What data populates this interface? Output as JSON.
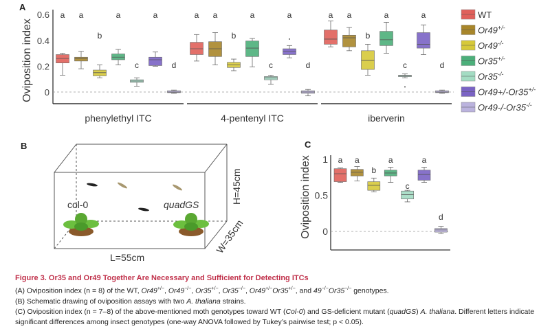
{
  "panels": {
    "a": "A",
    "b": "B",
    "c": "C"
  },
  "legend": [
    {
      "base": "WT",
      "sup": "",
      "italic": false,
      "color": "#e0605a"
    },
    {
      "base": "Or49",
      "sup": "+/-",
      "italic": true,
      "color": "#a8862a"
    },
    {
      "base": "Or49",
      "sup": "-/-",
      "italic": true,
      "color": "#d6c93a"
    },
    {
      "base": "Or35",
      "sup": "+/-",
      "italic": true,
      "color": "#4caf7a"
    },
    {
      "base": "Or35",
      "sup": "-/-",
      "italic": true,
      "color": "#a3dcc3"
    },
    {
      "base": "Or49+/-Or35",
      "sup": "+/-",
      "italic": true,
      "color": "#7a63c4"
    },
    {
      "base": "Or49-/-Or35",
      "sup": "-/-",
      "italic": true,
      "color": "#bbb3de"
    }
  ],
  "chart_data": [
    {
      "id": "A",
      "type": "boxplot",
      "ylabel": "Oviposition index",
      "yticks": [
        "0",
        "0.2",
        "0.4",
        "0.6"
      ],
      "ylim": [
        -0.03,
        0.62
      ],
      "reference_line": 0,
      "box_stats_order": [
        "min",
        "q1",
        "median",
        "q3",
        "max"
      ],
      "groups": [
        {
          "label": "phenylethyl ITC",
          "boxes": [
            {
              "stats": [
                0.13,
                0.225,
                0.26,
                0.29,
                0.3
              ],
              "letter": "a"
            },
            {
              "stats": [
                0.18,
                0.24,
                0.26,
                0.27,
                0.315
              ],
              "letter": "a"
            },
            {
              "stats": [
                0.11,
                0.125,
                0.15,
                0.17,
                0.21
              ],
              "letter": "b"
            },
            {
              "stats": [
                0.21,
                0.25,
                0.27,
                0.295,
                0.33
              ],
              "letter": "a"
            },
            {
              "stats": [
                0.045,
                0.075,
                0.085,
                0.095,
                0.11
              ],
              "letter": "c"
            },
            {
              "stats": [
                0.2,
                0.205,
                0.25,
                0.27,
                0.31
              ],
              "letter": "a"
            },
            {
              "stats": [
                -0.01,
                -0.005,
                0.0,
                0.01,
                0.015
              ],
              "letter": "d"
            }
          ]
        },
        {
          "label": "4-pentenyl ITC",
          "boxes": [
            {
              "stats": [
                0.24,
                0.29,
                0.335,
                0.385,
                0.445
              ],
              "letter": "a"
            },
            {
              "stats": [
                0.21,
                0.275,
                0.335,
                0.39,
                0.46
              ],
              "letter": "a"
            },
            {
              "stats": [
                0.165,
                0.19,
                0.21,
                0.23,
                0.255
              ],
              "letter": "b"
            },
            {
              "stats": [
                0.195,
                0.275,
                0.34,
                0.395,
                0.415
              ],
              "letter": "a"
            },
            {
              "stats": [
                0.06,
                0.095,
                0.11,
                0.12,
                0.13
              ],
              "letter": "c"
            },
            {
              "stats": [
                0.265,
                0.29,
                0.315,
                0.335,
                0.36
              ],
              "letter": "a",
              "outliers": [
                0.41
              ]
            },
            {
              "stats": [
                -0.03,
                -0.01,
                0.0,
                0.01,
                0.02
              ],
              "letter": "d"
            }
          ]
        },
        {
          "label": "iberverin",
          "boxes": [
            {
              "stats": [
                0.35,
                0.37,
                0.41,
                0.48,
                0.55
              ],
              "letter": "a"
            },
            {
              "stats": [
                0.32,
                0.35,
                0.42,
                0.44,
                0.5
              ],
              "letter": "a"
            },
            {
              "stats": [
                0.13,
                0.175,
                0.245,
                0.32,
                0.37
              ],
              "letter": "b"
            },
            {
              "stats": [
                0.3,
                0.36,
                0.405,
                0.47,
                0.54
              ],
              "letter": "a"
            },
            {
              "stats": [
                0.11,
                0.12,
                0.125,
                0.13,
                0.14
              ],
              "letter": "c",
              "outliers": [
                0.04
              ]
            },
            {
              "stats": [
                0.29,
                0.34,
                0.37,
                0.46,
                0.52
              ],
              "letter": "a"
            },
            {
              "stats": [
                -0.01,
                -0.005,
                0.0,
                0.01,
                0.015
              ],
              "letter": "d"
            }
          ]
        }
      ]
    },
    {
      "id": "C",
      "type": "boxplot",
      "ylabel": "Oviposition index",
      "yticks": [
        "0",
        "0.5",
        "1"
      ],
      "ylim": [
        -0.27,
        1.0
      ],
      "reference_line": 0,
      "box_stats_order": [
        "min",
        "q1",
        "median",
        "q3",
        "max"
      ],
      "boxes": [
        {
          "stats": [
            0.68,
            0.69,
            0.8,
            0.87,
            0.88
          ],
          "letter": "a"
        },
        {
          "stats": [
            0.7,
            0.77,
            0.82,
            0.86,
            0.9
          ],
          "letter": "a"
        },
        {
          "stats": [
            0.55,
            0.57,
            0.64,
            0.69,
            0.74
          ],
          "letter": "b"
        },
        {
          "stats": [
            0.68,
            0.77,
            0.81,
            0.85,
            0.89
          ],
          "letter": "a"
        },
        {
          "stats": [
            0.41,
            0.45,
            0.51,
            0.56,
            0.57
          ],
          "letter": "c"
        },
        {
          "stats": [
            0.68,
            0.71,
            0.79,
            0.85,
            0.89
          ],
          "letter": "a"
        },
        {
          "stats": [
            -0.03,
            -0.01,
            0.02,
            0.04,
            0.07
          ],
          "letter": "d"
        }
      ]
    }
  ],
  "schematic": {
    "left_plant": "col-0",
    "right_plant": "quadGS",
    "length": "L=55cm",
    "height": "H=45cm",
    "width": "W=35cm"
  },
  "caption": {
    "title": "Figure 3.  Or35 and Or49 Together Are Necessary and Sufficient for Detecting ITCs",
    "lines": [
      [
        {
          "t": "(A) Oviposition index (n = 8) of the WT, "
        },
        {
          "t": "Or49",
          "i": true
        },
        {
          "t": "+/−",
          "s": true
        },
        {
          "t": ", "
        },
        {
          "t": "Or49",
          "i": true
        },
        {
          "t": "−/−",
          "s": true
        },
        {
          "t": ", "
        },
        {
          "t": "Or35",
          "i": true
        },
        {
          "t": "+/−",
          "s": true
        },
        {
          "t": ", "
        },
        {
          "t": "Or35",
          "i": true
        },
        {
          "t": "−/−",
          "s": true
        },
        {
          "t": ", "
        },
        {
          "t": "Or49",
          "i": true
        },
        {
          "t": "+/−",
          "s": true
        },
        {
          "t": "Or35",
          "i": true
        },
        {
          "t": "+/−",
          "s": true
        },
        {
          "t": ", and "
        },
        {
          "t": "49",
          "i": true
        },
        {
          "t": "−/−",
          "s": true
        },
        {
          "t": "Or35",
          "i": true
        },
        {
          "t": "−/−",
          "s": true
        },
        {
          "t": " genotypes."
        }
      ],
      [
        {
          "t": "(B) Schematic drawing of oviposition assays with two "
        },
        {
          "t": "A. thaliana",
          "i": true
        },
        {
          "t": " strains."
        }
      ],
      [
        {
          "t": "(C) Oviposition index (n = 7–8) of the above-mentioned moth genotypes toward WT ("
        },
        {
          "t": "Col-0",
          "i": true
        },
        {
          "t": ") and GS-deficient mutant ("
        },
        {
          "t": "quadGS",
          "i": true
        },
        {
          "t": ") "
        },
        {
          "t": "A. thaliana",
          "i": true
        },
        {
          "t": ". Different letters indicate significant differences among insect genotypes (one-way ANOVA followed by Tukey’s pairwise test; p < 0.05)."
        }
      ]
    ]
  }
}
